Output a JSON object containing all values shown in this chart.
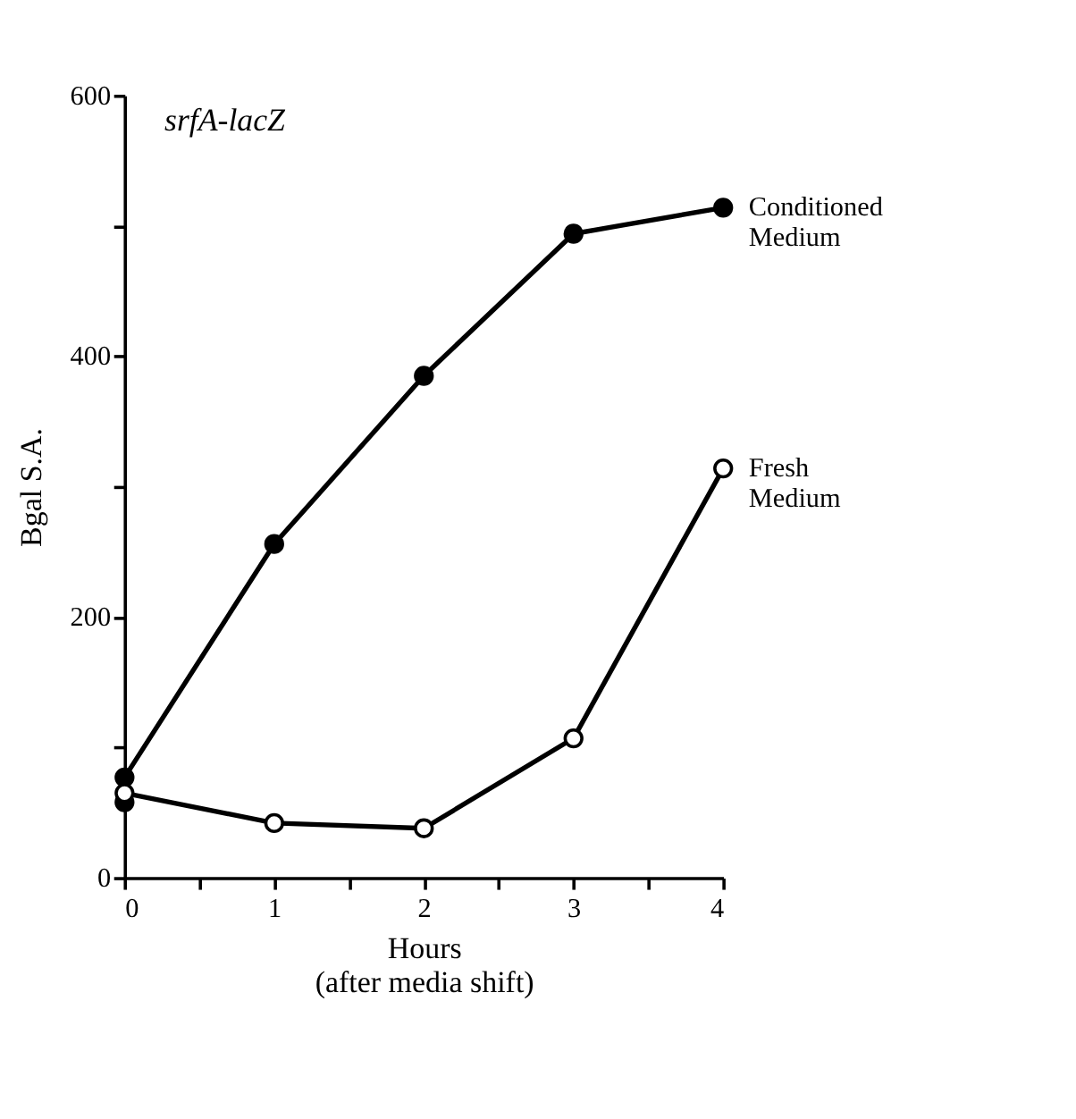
{
  "chart_data": {
    "type": "line",
    "title": "srfA-lacZ",
    "xlabel": "Hours\n(after media shift)",
    "ylabel": "Bgal S.A.",
    "x": [
      0,
      1,
      2,
      3,
      4
    ],
    "series": [
      {
        "name": "Conditioned Medium",
        "color": "#000000",
        "values": [
          77,
          256,
          385,
          494,
          514
        ],
        "marker": "circle"
      },
      {
        "name": "Fresh Medium",
        "color": "#000000",
        "values": [
          65,
          42,
          38,
          107,
          314
        ],
        "marker": "open circle"
      },
      {
        "type": "scatter",
        "color": "#000000",
        "x": [
          0
        ],
        "values": [
          58
        ],
        "marker": "circle"
      }
    ],
    "xlim": [
      0,
      4
    ],
    "xticks": [
      0,
      {
        "value": 0.5,
        "label": null
      },
      1,
      {
        "value": 1.5,
        "label": null
      },
      2,
      {
        "value": 2.5,
        "label": null
      },
      3,
      {
        "value": 3.5,
        "label": null
      },
      4
    ],
    "ylim": [
      0,
      600
    ],
    "yticks": [
      0,
      {
        "value": 100,
        "label": null
      },
      200,
      {
        "value": 300,
        "label": null
      },
      400,
      {
        "value": 500,
        "label": null
      },
      600
    ],
    "grid": false,
    "legend": false,
    "line_style": "solid"
  }
}
